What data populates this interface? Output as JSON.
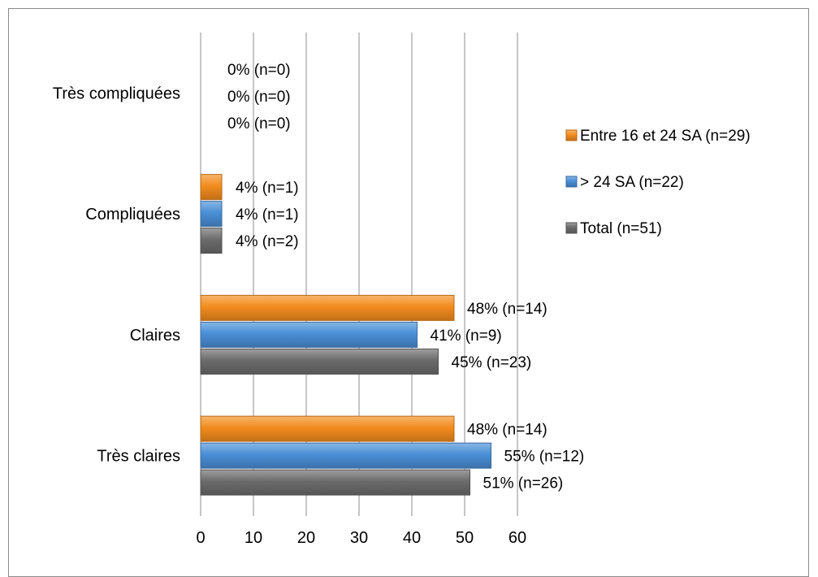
{
  "chart_data": {
    "type": "bar",
    "orientation": "horizontal",
    "categories": [
      "Très compliquées",
      "Compliquées",
      "Claires",
      "Très claires"
    ],
    "series": [
      {
        "name": "Entre 16 et 24 SA (n=29)",
        "color": "#f28c1e",
        "values": [
          0,
          4,
          48,
          48
        ],
        "labels": [
          "0% (n=0)",
          "4% (n=1)",
          "48% (n=14)",
          "48% (n=14)"
        ]
      },
      {
        "name": "> 24 SA (n=22)",
        "color": "#4a8fd6",
        "values": [
          0,
          4,
          41,
          55
        ],
        "labels": [
          "0% (n=0)",
          "4% (n=1)",
          "41% (n=9)",
          "55%  (n=12)"
        ]
      },
      {
        "name": "Total (n=51)",
        "color": "#6b6b6b",
        "values": [
          0,
          4,
          45,
          51
        ],
        "labels": [
          "0% (n=0)",
          "4% (n=2)",
          "45% (n=23)",
          "51% (n=26)"
        ]
      }
    ],
    "xlim": [
      0,
      60
    ],
    "xticks": [
      0,
      10,
      20,
      30,
      40,
      50,
      60
    ],
    "grid": true,
    "legend_position": "right",
    "title": "",
    "xlabel": "",
    "ylabel": ""
  }
}
